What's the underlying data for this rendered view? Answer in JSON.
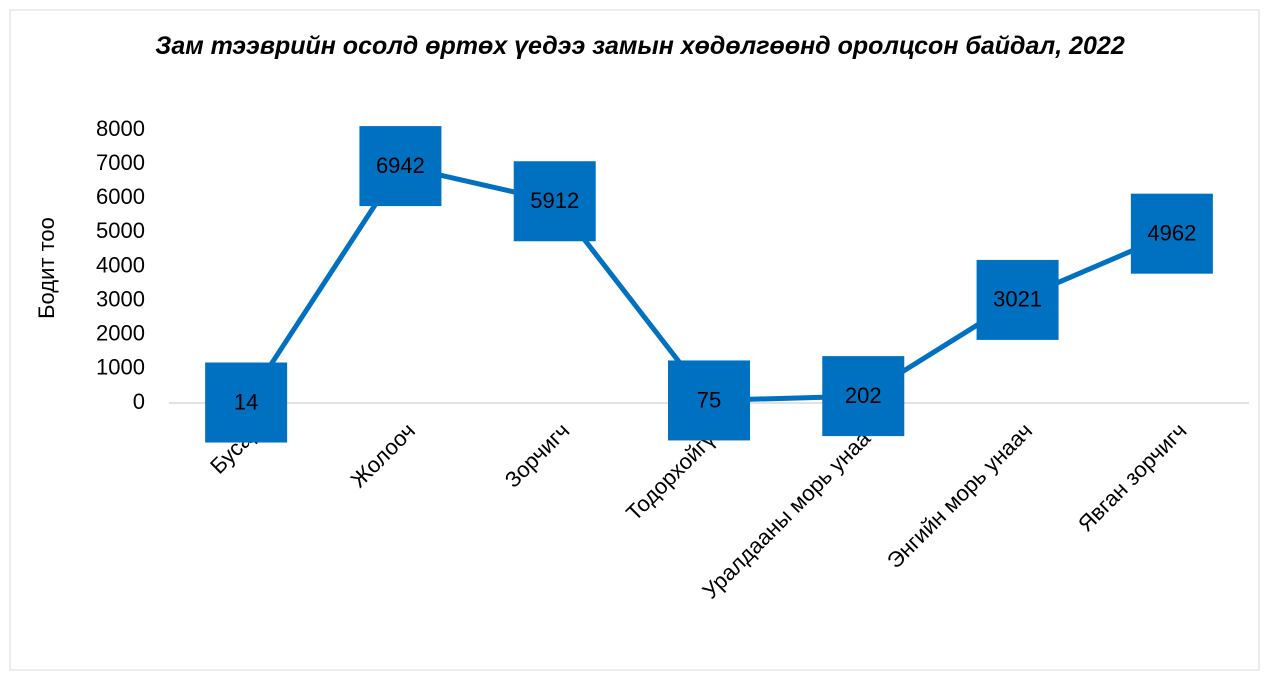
{
  "chart_data": {
    "type": "line",
    "title": "Зам тээврийн осолд өртөх үедээ замын хөдөлгөөнд оролцсон байдал, 2022",
    "y_label": "Бодит тоо",
    "categories": [
      "Бусад",
      "Жолооч",
      "Зорчигч",
      "Тодорхойгүй",
      "Уралдааны морь унаач",
      "Энгийн морь унаач",
      "Явган зорчигч"
    ],
    "values": [
      14,
      6942,
      5912,
      75,
      202,
      3021,
      4962
    ],
    "color": "#0070c0",
    "ylim": [
      0,
      8000
    ],
    "yticks": [
      0,
      1000,
      2000,
      3000,
      4000,
      5000,
      6000,
      7000,
      8000
    ],
    "grid": false
  }
}
